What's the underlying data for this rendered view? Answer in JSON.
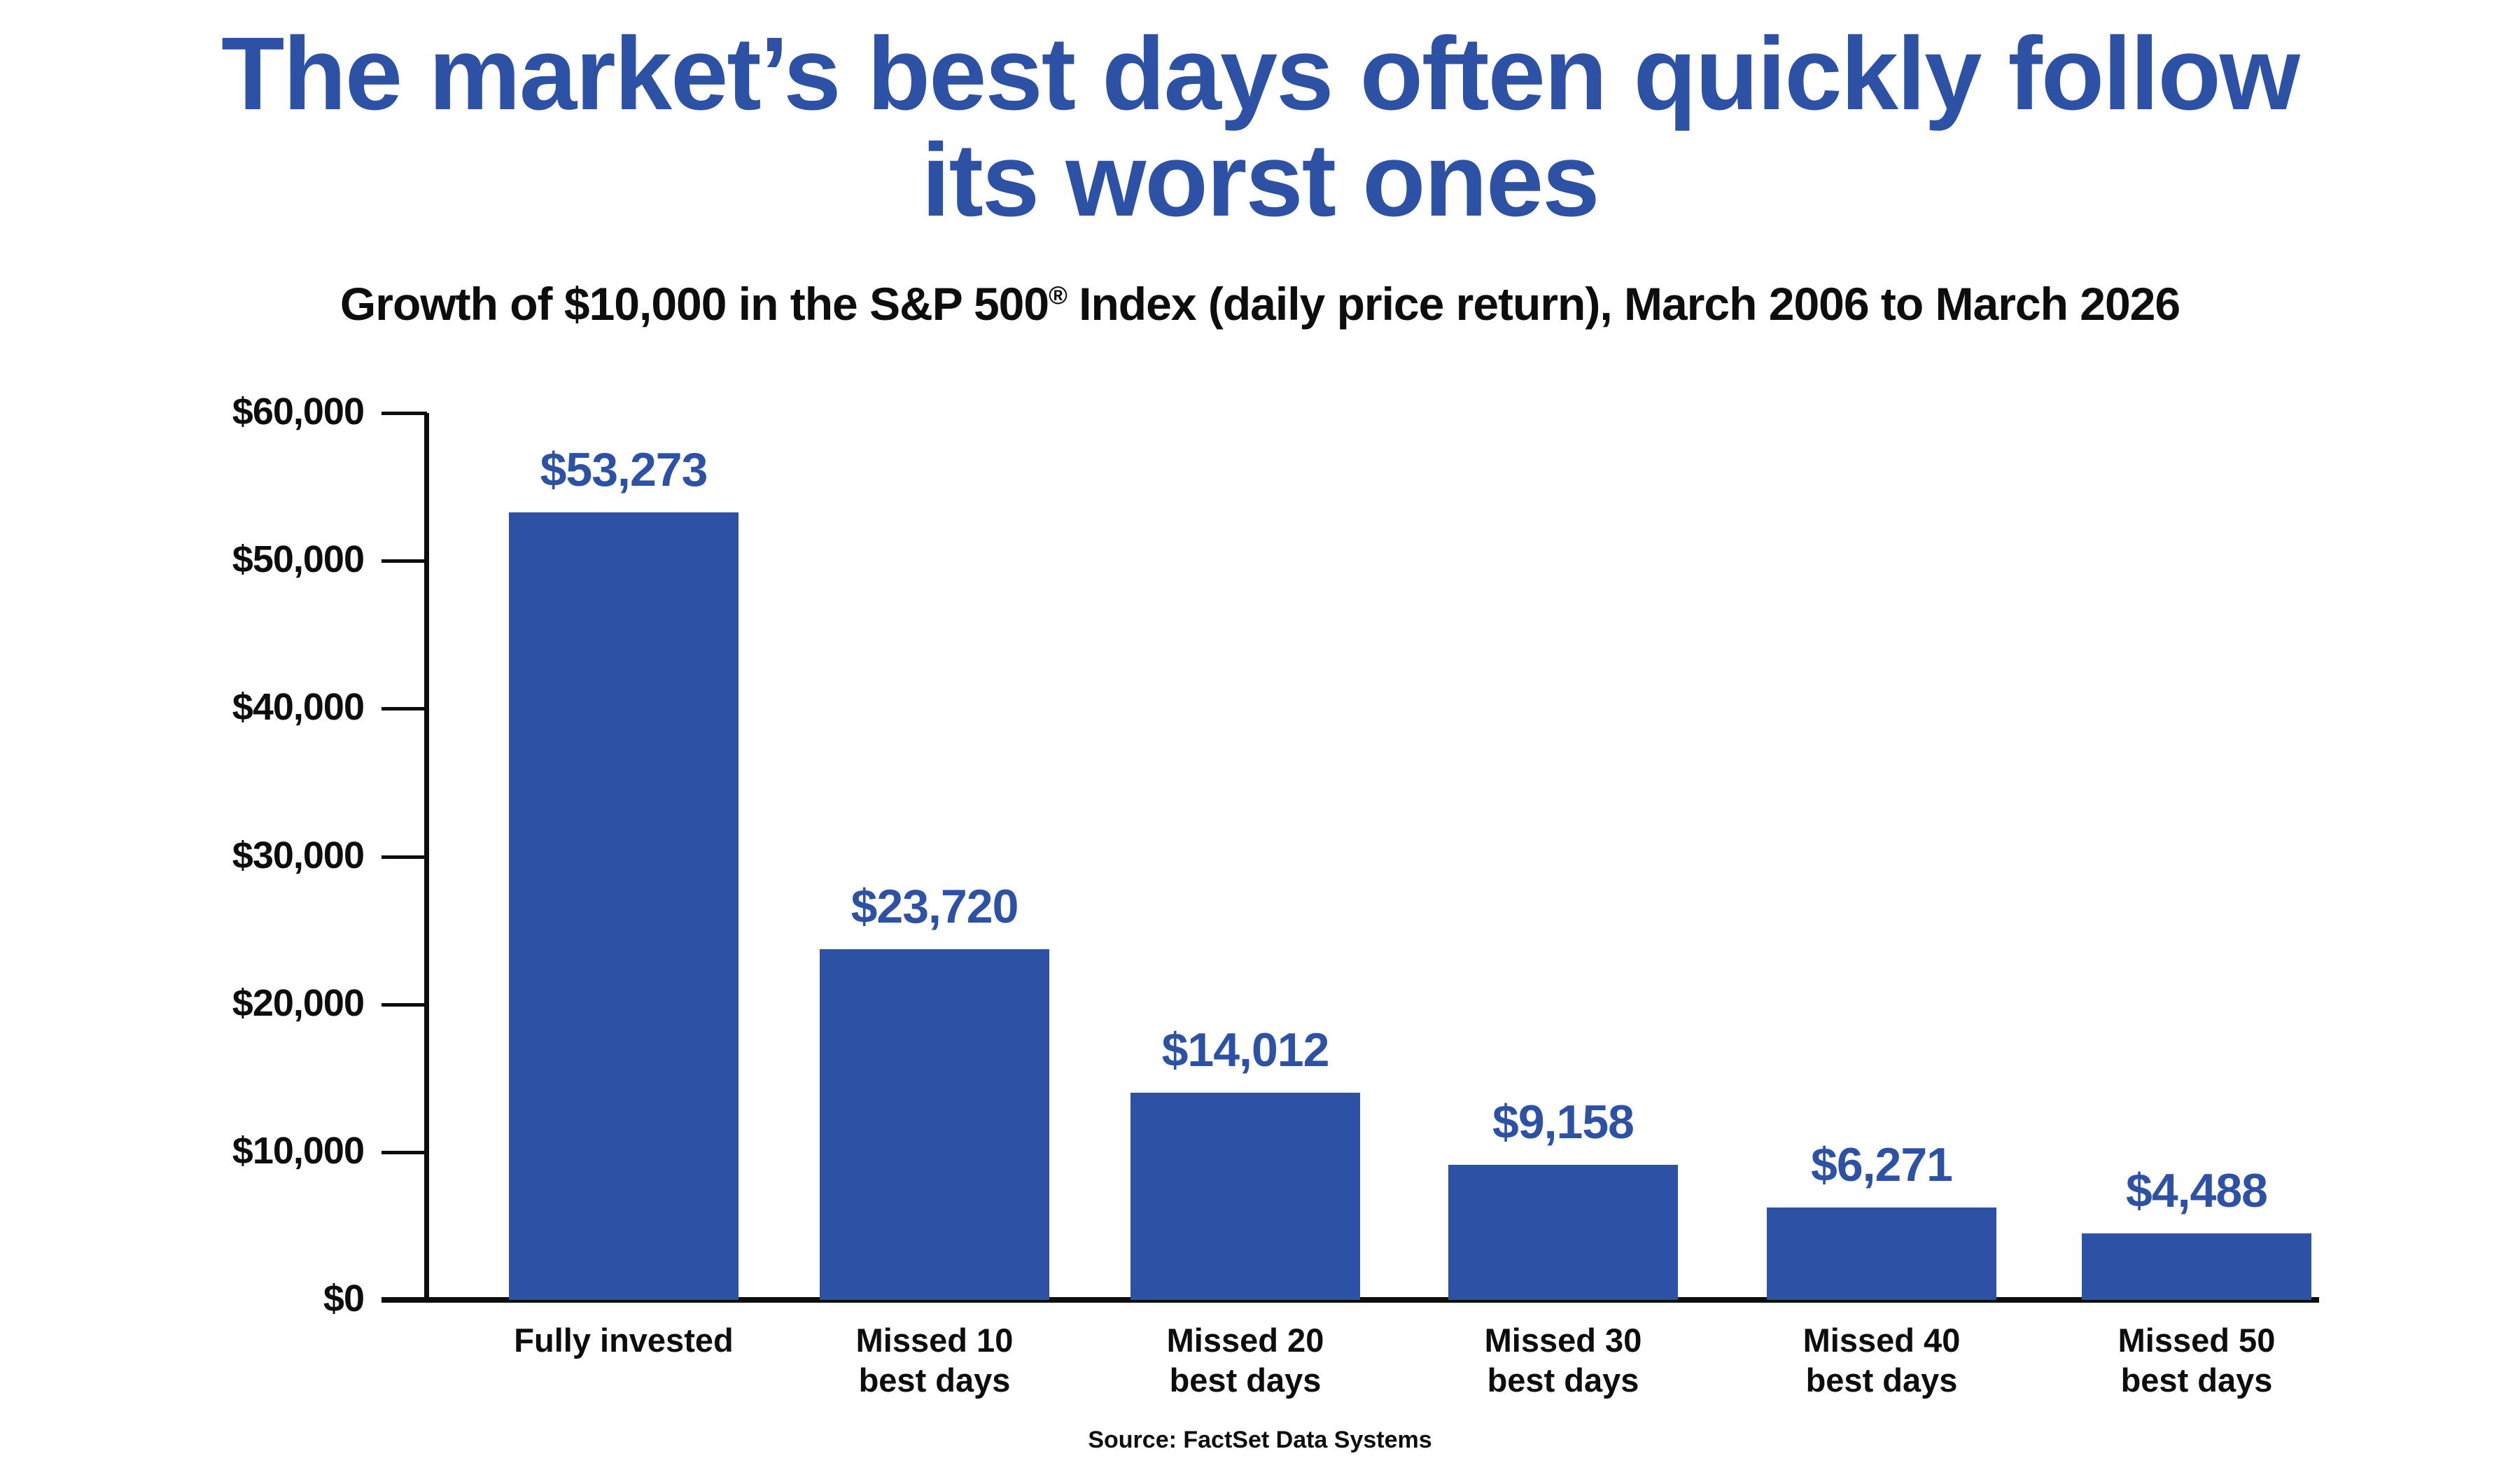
{
  "page": {
    "title_lines": [
      "The market’s best days often quickly follow",
      "its worst ones"
    ],
    "subtitle_before": "Growth of $10,000 in the S&P 500",
    "subtitle_reg": "®",
    "subtitle_after": " Index (daily price return), March 2006 to March 2026",
    "source": "Source: FactSet Data Systems"
  },
  "colors": {
    "accent_blue": "#2d51a4",
    "axis_black": "#0d0d0d",
    "background": "#ffffff"
  },
  "chart_data": {
    "type": "bar",
    "title": "The market’s best days often quickly follow its worst ones",
    "subtitle": "Growth of $10,000 in the S&P 500® Index (daily price return), March 2006 to March 2026",
    "categories": [
      "Fully invested",
      "Missed 10\nbest days",
      "Missed 20\nbest days",
      "Missed 30\nbest days",
      "Missed 40\nbest days",
      "Missed 50\nbest days"
    ],
    "values": [
      53273,
      23720,
      14012,
      9158,
      6271,
      4488
    ],
    "value_labels": [
      "$53,273",
      "$23,720",
      "$14,012",
      "$9,158",
      "$6,271",
      "$4,488"
    ],
    "xlabel": "",
    "ylabel": "",
    "ylim": [
      0,
      60000
    ],
    "ytick_values": [
      60000,
      50000,
      40000,
      30000,
      20000,
      10000,
      0
    ],
    "ytick_labels": [
      "$60,000",
      "$50,000",
      "$40,000",
      "$30,000",
      "$20,000",
      "$10,000",
      "$0"
    ],
    "grid": false,
    "legend": false,
    "bar_color": "#2d51a4",
    "value_label_color": "#2d51a4",
    "source": "Source: FactSet Data Systems"
  }
}
